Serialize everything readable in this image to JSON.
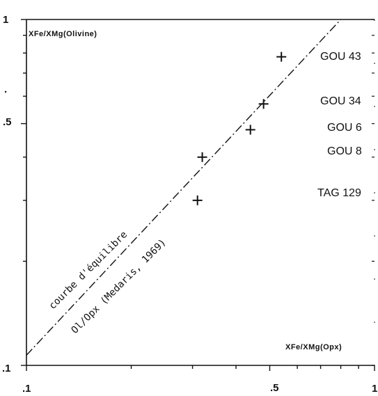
{
  "chart_data": {
    "type": "scatter",
    "title": "",
    "xlabel": "XFe/XMg(Opx)",
    "ylabel": "XFe/XMg(Olivine)",
    "x_scale": "log",
    "y_scale": "log",
    "xlim": [
      0.1,
      1
    ],
    "ylim": [
      0.1,
      1
    ],
    "x_tick_labels": [
      ".1",
      ".5",
      "1"
    ],
    "y_tick_labels": [
      ".1",
      ".5",
      "1"
    ],
    "stray_mark": ".",
    "grid": false,
    "series": [
      {
        "points": [
          {
            "x": 0.54,
            "y": 0.78
          },
          {
            "x": 0.48,
            "y": 0.57
          },
          {
            "x": 0.44,
            "y": 0.48
          },
          {
            "x": 0.32,
            "y": 0.4
          },
          {
            "x": 0.31,
            "y": 0.3
          }
        ]
      }
    ],
    "sample_labels": [
      "GOU 43",
      "GOU 34",
      "GOU 6",
      "GOU 8",
      "TAG 129"
    ],
    "equilibrium_curve": {
      "label_line1": "courbe d'équilibre",
      "label_line2": "Ol/Opx (Medaris, 1969)",
      "points": [
        {
          "x": 0.1,
          "y": 0.107
        },
        {
          "x": 0.8,
          "y": 1.0
        }
      ]
    }
  }
}
